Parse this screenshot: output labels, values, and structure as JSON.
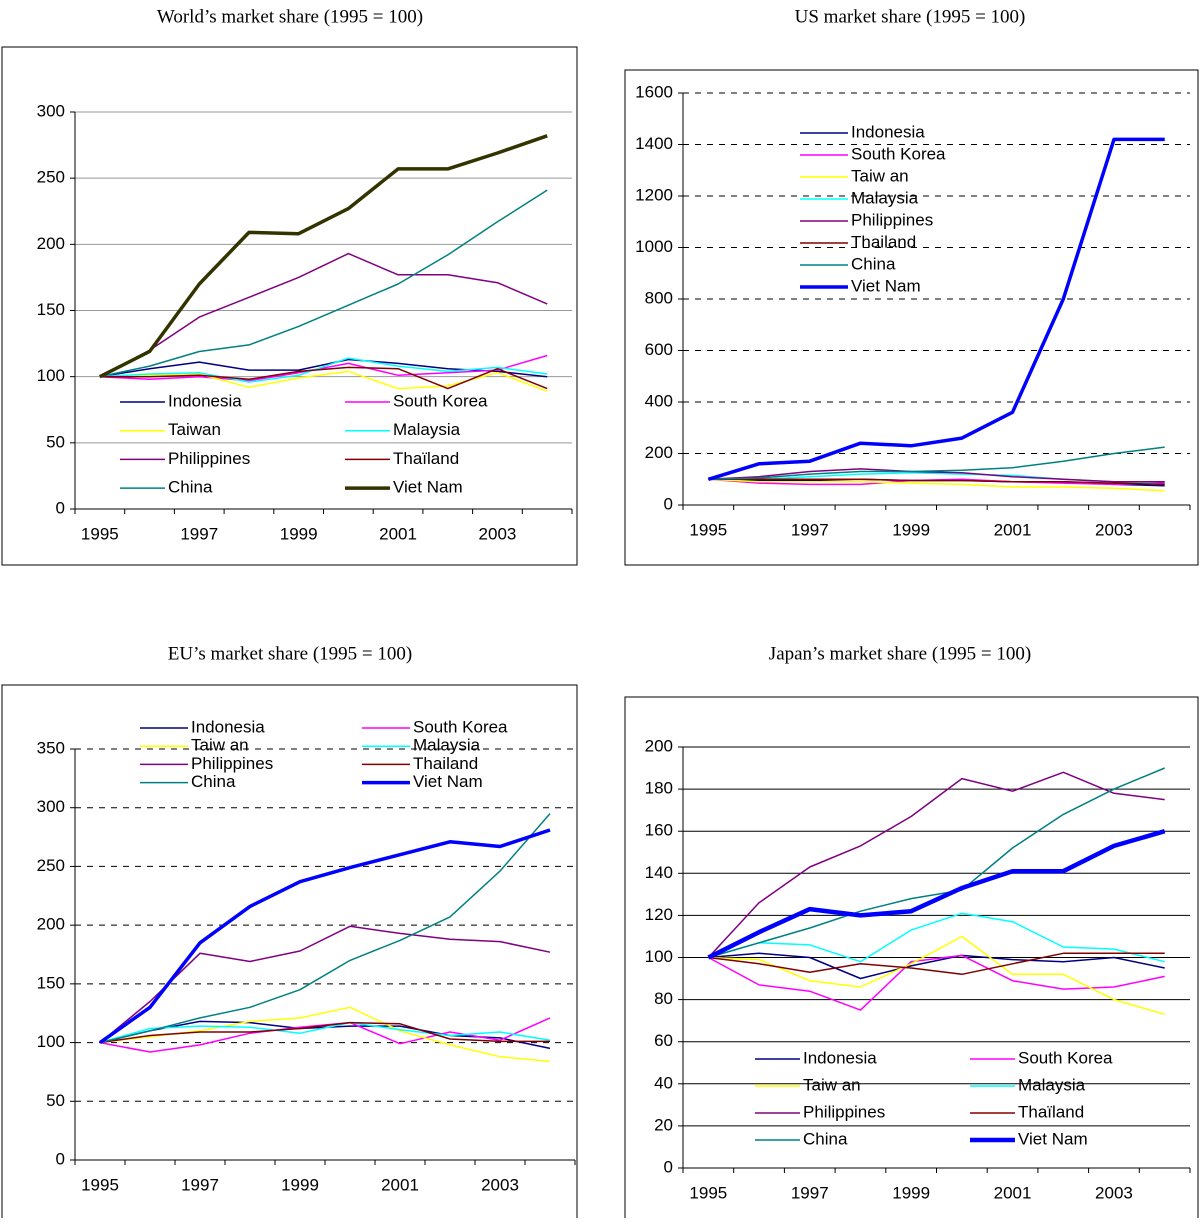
{
  "chart_data": [
    {
      "type": "line",
      "title": "World’s market share (1995 = 100)",
      "categories": [
        "1995",
        null,
        "1997",
        null,
        "1999",
        null,
        "2001",
        null,
        "2003",
        null
      ],
      "ylim": [
        0,
        300
      ],
      "yticks": [
        0,
        50,
        100,
        150,
        200,
        250,
        300
      ],
      "grid": "solid",
      "series": [
        {
          "name": "Indonesia",
          "color": "#000080",
          "values": [
            100,
            106,
            111,
            105,
            105,
            113,
            110,
            106,
            104,
            100
          ]
        },
        {
          "name": "South Korea",
          "color": "#ff00ff",
          "values": [
            100,
            98,
            100,
            97,
            103,
            110,
            101,
            103,
            105,
            116
          ]
        },
        {
          "name": "Taiwan",
          "color": "#ffff00",
          "values": [
            100,
            101,
            102,
            92,
            99,
            104,
            91,
            93,
            103,
            89
          ]
        },
        {
          "name": "Malaysia",
          "color": "#00ffff",
          "values": [
            100,
            102,
            103,
            96,
            101,
            114,
            108,
            104,
            107,
            102
          ]
        },
        {
          "name": "Philippines",
          "color": "#800080",
          "values": [
            100,
            120,
            145,
            160,
            175,
            193,
            177,
            177,
            171,
            155
          ]
        },
        {
          "name": "Thaïland",
          "color": "#800000",
          "values": [
            100,
            100,
            101,
            98,
            104,
            107,
            106,
            91,
            106,
            91
          ]
        },
        {
          "name": "China",
          "color": "#008080",
          "values": [
            100,
            108,
            119,
            124,
            138,
            154,
            170,
            192,
            217,
            241
          ]
        },
        {
          "name": "Viet Nam",
          "color": "#333300",
          "width": 3.5,
          "values": [
            100,
            119,
            170,
            209,
            208,
            227,
            257,
            257,
            269,
            282
          ]
        }
      ]
    },
    {
      "type": "line",
      "title": "US market share (1995 = 100)",
      "categories": [
        "1995",
        null,
        "1997",
        null,
        "1999",
        null,
        "2001",
        null,
        "2003",
        null
      ],
      "ylim": [
        0,
        1600
      ],
      "yticks": [
        0,
        200,
        400,
        600,
        800,
        1000,
        1200,
        1400,
        1600
      ],
      "grid": "dashed",
      "series": [
        {
          "name": "Indonesia",
          "color": "#000080",
          "values": [
            100,
            95,
            95,
            100,
            95,
            95,
            90,
            90,
            80,
            75
          ]
        },
        {
          "name": "South Korea",
          "color": "#ff00ff",
          "values": [
            100,
            85,
            80,
            80,
            95,
            100,
            90,
            85,
            80,
            85
          ]
        },
        {
          "name": "Taiw an",
          "color": "#ffff00",
          "values": [
            100,
            90,
            90,
            90,
            85,
            80,
            70,
            70,
            65,
            55
          ]
        },
        {
          "name": "Malaysia",
          "color": "#00ffff",
          "values": [
            100,
            100,
            110,
            120,
            125,
            120,
            115,
            100,
            90,
            80
          ]
        },
        {
          "name": "Philippines",
          "color": "#800080",
          "values": [
            100,
            110,
            130,
            140,
            130,
            125,
            110,
            100,
            90,
            90
          ]
        },
        {
          "name": "Thailand",
          "color": "#800000",
          "values": [
            100,
            100,
            100,
            100,
            95,
            95,
            90,
            90,
            85,
            80
          ]
        },
        {
          "name": "China",
          "color": "#008080",
          "values": [
            100,
            105,
            120,
            130,
            130,
            135,
            145,
            170,
            200,
            225
          ]
        },
        {
          "name": "Viet Nam",
          "color": "#0000ff",
          "width": 3.5,
          "values": [
            100,
            160,
            170,
            240,
            230,
            260,
            360,
            800,
            1420,
            1420
          ]
        }
      ]
    },
    {
      "type": "line",
      "title": "EU’s market share (1995 = 100)",
      "categories": [
        "1995",
        null,
        "1997",
        null,
        "1999",
        null,
        "2001",
        null,
        "2003",
        null
      ],
      "ylim": [
        0,
        350
      ],
      "yticks": [
        0,
        50,
        100,
        150,
        200,
        250,
        300,
        350
      ],
      "grid": "dashed",
      "series": [
        {
          "name": "Indonesia",
          "color": "#000080",
          "values": [
            100,
            110,
            118,
            117,
            112,
            114,
            114,
            106,
            104,
            95
          ]
        },
        {
          "name": "South Korea",
          "color": "#ff00ff",
          "values": [
            100,
            92,
            98,
            108,
            113,
            117,
            99,
            109,
            102,
            121
          ]
        },
        {
          "name": "Taiw an",
          "color": "#ffff00",
          "values": [
            100,
            105,
            110,
            118,
            121,
            130,
            110,
            98,
            88,
            84
          ]
        },
        {
          "name": "Malaysia",
          "color": "#00ffff",
          "values": [
            100,
            112,
            114,
            113,
            108,
            117,
            111,
            106,
            109,
            102
          ]
        },
        {
          "name": "Philippines",
          "color": "#800080",
          "values": [
            100,
            135,
            176,
            169,
            178,
            199,
            193,
            188,
            186,
            177
          ]
        },
        {
          "name": "Thailand",
          "color": "#800000",
          "values": [
            100,
            106,
            109,
            109,
            112,
            117,
            116,
            103,
            101,
            101
          ]
        },
        {
          "name": "China",
          "color": "#008080",
          "values": [
            100,
            110,
            121,
            130,
            145,
            170,
            187,
            207,
            246,
            295
          ]
        },
        {
          "name": "Viet Nam",
          "color": "#0000ff",
          "width": 3.5,
          "values": [
            100,
            130,
            185,
            216,
            237,
            249,
            260,
            271,
            267,
            281
          ]
        }
      ]
    },
    {
      "type": "line",
      "title": "Japan’s market share (1995 = 100)",
      "categories": [
        "1995",
        null,
        "1997",
        null,
        "1999",
        null,
        "2001",
        null,
        "2003",
        null
      ],
      "ylim": [
        0,
        200
      ],
      "yticks": [
        0,
        20,
        40,
        60,
        80,
        100,
        120,
        140,
        160,
        180,
        200
      ],
      "grid": "solid",
      "series": [
        {
          "name": "Indonesia",
          "color": "#000080",
          "values": [
            100,
            102,
            100,
            90,
            96,
            101,
            99,
            98,
            100,
            95
          ]
        },
        {
          "name": "South Korea",
          "color": "#ff00ff",
          "values": [
            100,
            87,
            84,
            75,
            98,
            101,
            89,
            85,
            86,
            91
          ]
        },
        {
          "name": "Taiw an",
          "color": "#ffff00",
          "values": [
            100,
            99,
            89,
            86,
            97,
            110,
            92,
            92,
            80,
            73
          ]
        },
        {
          "name": "Malaysia",
          "color": "#00ffff",
          "values": [
            100,
            107,
            106,
            98,
            113,
            121,
            117,
            105,
            104,
            98
          ]
        },
        {
          "name": "Philippines",
          "color": "#800080",
          "values": [
            100,
            126,
            143,
            153,
            167,
            185,
            179,
            188,
            178,
            175
          ]
        },
        {
          "name": "Thaïland",
          "color": "#800000",
          "values": [
            100,
            97,
            93,
            97,
            95,
            92,
            97,
            102,
            102,
            102
          ]
        },
        {
          "name": "China",
          "color": "#008080",
          "values": [
            100,
            107,
            114,
            122,
            128,
            132,
            152,
            168,
            180,
            190
          ]
        },
        {
          "name": "Viet Nam",
          "color": "#0000ff",
          "width": 4.5,
          "values": [
            100,
            112,
            123,
            120,
            122,
            133,
            141,
            141,
            153,
            160
          ]
        }
      ]
    }
  ]
}
